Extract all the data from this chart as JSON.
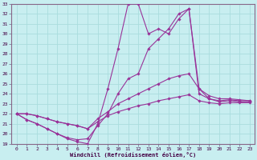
{
  "xlabel": "Windchill (Refroidissement éolien,°C)",
  "xlim": [
    -0.5,
    23.5
  ],
  "ylim": [
    19,
    33
  ],
  "xticks": [
    0,
    1,
    2,
    3,
    4,
    5,
    6,
    7,
    8,
    9,
    10,
    11,
    12,
    13,
    14,
    15,
    16,
    17,
    18,
    19,
    20,
    21,
    22,
    23
  ],
  "yticks": [
    19,
    20,
    21,
    22,
    23,
    24,
    25,
    26,
    27,
    28,
    29,
    30,
    31,
    32,
    33
  ],
  "bg_color": "#c8eef0",
  "line_color": "#993399",
  "grid_color": "#aadddd",
  "lines": [
    [
      22.0,
      21.4,
      21.0,
      20.5,
      20.0,
      19.5,
      19.2,
      19.0,
      21.0,
      24.5,
      28.5,
      33.0,
      33.0,
      30.0,
      30.5,
      30.0,
      31.5,
      32.5,
      24.5,
      23.5,
      23.2,
      23.3,
      23.2,
      23.2
    ],
    [
      22.0,
      21.4,
      21.0,
      20.5,
      20.0,
      19.6,
      19.4,
      19.5,
      20.8,
      22.0,
      24.0,
      25.5,
      26.0,
      28.5,
      29.5,
      30.5,
      32.0,
      32.5,
      24.0,
      23.5,
      23.3,
      23.4,
      23.3,
      23.3
    ],
    [
      22.0,
      22.0,
      21.8,
      21.5,
      21.2,
      21.0,
      20.8,
      20.5,
      21.5,
      22.2,
      23.0,
      23.5,
      24.0,
      24.5,
      25.0,
      25.5,
      25.8,
      26.0,
      24.5,
      23.8,
      23.5,
      23.5,
      23.4,
      23.3
    ],
    [
      22.0,
      22.0,
      21.8,
      21.5,
      21.2,
      21.0,
      20.8,
      20.5,
      21.2,
      21.8,
      22.2,
      22.5,
      22.8,
      23.0,
      23.3,
      23.5,
      23.7,
      23.9,
      23.3,
      23.1,
      23.0,
      23.1,
      23.1,
      23.1
    ]
  ]
}
